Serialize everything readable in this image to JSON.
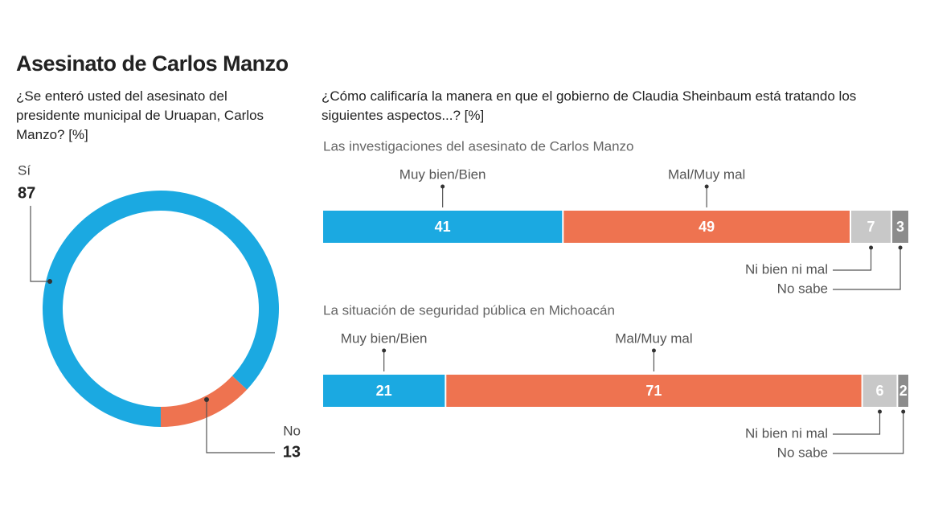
{
  "title": "Asesinato de Carlos Manzo",
  "chart_data": [
    {
      "type": "donut",
      "title": "¿Se enteró usted del asesinato del presidente municipal de Uruapan, Carlos Manzo? [%]",
      "categories": [
        "Sí",
        "No"
      ],
      "values": [
        87,
        13
      ],
      "colors": [
        "#1ba9e1",
        "#ee7350"
      ]
    },
    {
      "type": "stacked_bar",
      "title": "¿Cómo calificaría la manera en que el gobierno de Claudia Sheinbaum está tratando los siguientes aspectos...? [%]",
      "categories": [
        "Las investigaciones del asesinato de Carlos Manzo",
        "La situación de seguridad pública en Michoacán"
      ],
      "series": [
        {
          "name": "Muy bien/Bien",
          "color": "#1ba9e1",
          "values": [
            41,
            21
          ]
        },
        {
          "name": "Mal/Muy mal",
          "color": "#ee7350",
          "values": [
            49,
            71
          ]
        },
        {
          "name": "Ni bien ni mal",
          "color": "#c8c8c8",
          "values": [
            7,
            6
          ]
        },
        {
          "name": "No sabe",
          "color": "#8c8c8c",
          "values": [
            3,
            2
          ]
        }
      ]
    }
  ]
}
